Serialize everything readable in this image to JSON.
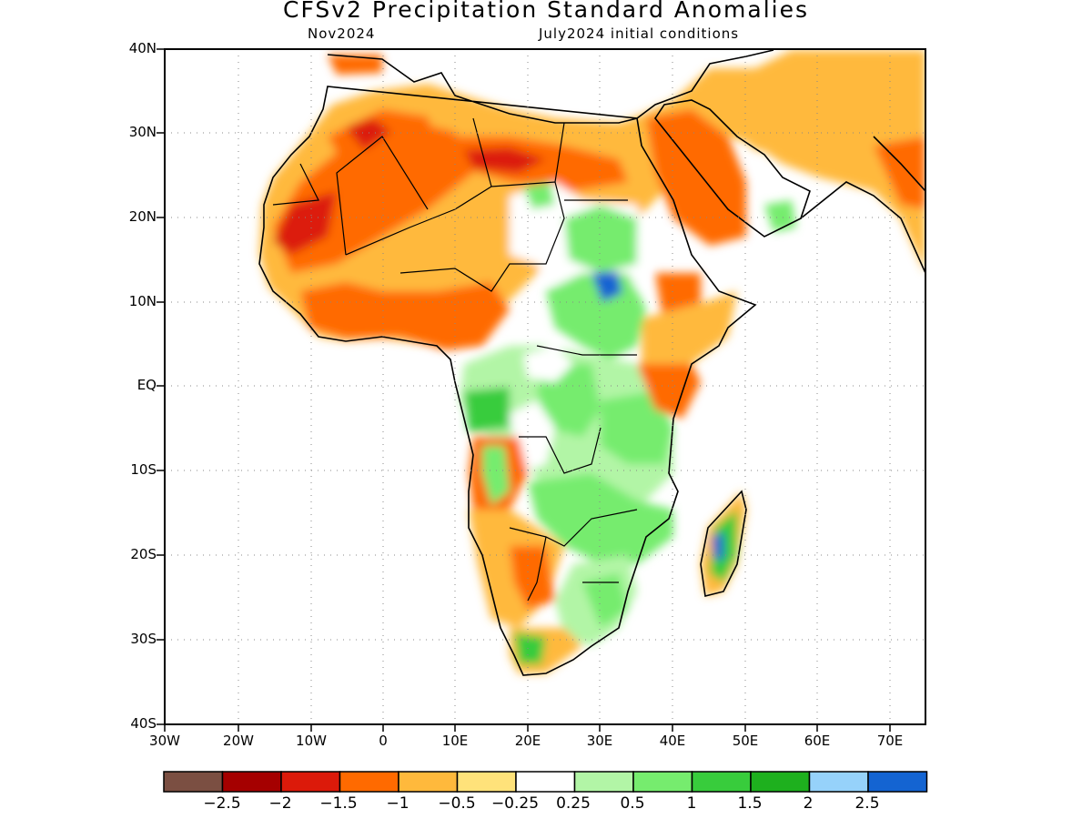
{
  "title": "CFSv2 Precipitation Standard Anomalies",
  "subtitle_left": "Nov2024",
  "subtitle_right": "July2024 initial conditions",
  "lat_labels": [
    "40N",
    "30N",
    "20N",
    "10N",
    "EQ",
    "10S",
    "20S",
    "30S",
    "40S"
  ],
  "lon_labels": [
    "30W",
    "20W",
    "10W",
    "0",
    "10E",
    "20E",
    "30E",
    "40E",
    "50E",
    "60E",
    "70E"
  ],
  "colorbar": {
    "colors": [
      "#7b4f42",
      "#a50000",
      "#dc1a0a",
      "#ff6a00",
      "#ffb93c",
      "#ffe27a",
      "#ffffff",
      "#b2f5a6",
      "#76ec6e",
      "#38cc3c",
      "#1eb01e",
      "#96d2fa",
      "#1464d2"
    ],
    "labels": [
      "−2.5",
      "−2",
      "−1.5",
      "−1",
      "−0.5",
      "−0.25",
      "0.25",
      "0.5",
      "1",
      "1.5",
      "2",
      "2.5"
    ]
  }
}
